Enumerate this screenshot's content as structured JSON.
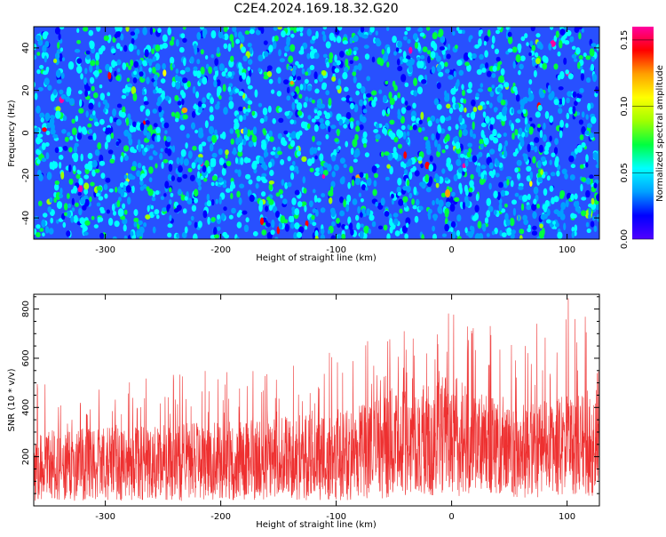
{
  "title": "C2E4.2024.169.18.32.G20",
  "colors": {
    "line": "#ee3030",
    "frame": "#000000"
  },
  "chart_data": [
    {
      "type": "heatmap",
      "xlabel": "Height of straight line (km)",
      "ylabel": "Frequency (Hz)",
      "xlim": [
        -362,
        128
      ],
      "ylim": [
        -50,
        50
      ],
      "x_ticks": [
        -300,
        -200,
        -100,
        0,
        100
      ],
      "y_ticks": [
        -40,
        -20,
        0,
        20,
        40
      ],
      "colorbar": {
        "label": "Normalized spectral amplitude",
        "range": [
          0.0,
          0.16
        ],
        "ticks": [
          "0.00",
          "0.05",
          "0.10",
          "0.15"
        ],
        "colormap": [
          "#5000ff",
          "#0000ff",
          "#00a0ff",
          "#00ffff",
          "#00ff40",
          "#a0ff00",
          "#ffff00",
          "#ffa000",
          "#ff0000",
          "#ff00a0"
        ]
      },
      "background_level": 0.02,
      "typical_level": 0.05,
      "max_level": 0.16,
      "legend": "none"
    },
    {
      "type": "line",
      "xlabel": "Height of straight line (km)",
      "ylabel": "SNR (10 * v/v)",
      "xlim": [
        -362,
        128
      ],
      "ylim": [
        0,
        860
      ],
      "x_ticks": [
        -300,
        -200,
        -100,
        0,
        100
      ],
      "y_ticks": [
        200,
        400,
        600,
        800
      ],
      "envelope": {
        "x": [
          -360,
          -300,
          -200,
          -100,
          -50,
          0,
          50,
          100,
          125
        ],
        "y_min": [
          20,
          20,
          20,
          20,
          30,
          40,
          30,
          40,
          40
        ],
        "y_typical": [
          160,
          170,
          180,
          200,
          240,
          280,
          210,
          240,
          250
        ],
        "y_max": [
          500,
          500,
          560,
          640,
          700,
          820,
          700,
          850,
          820
        ]
      },
      "legend": "none"
    }
  ]
}
